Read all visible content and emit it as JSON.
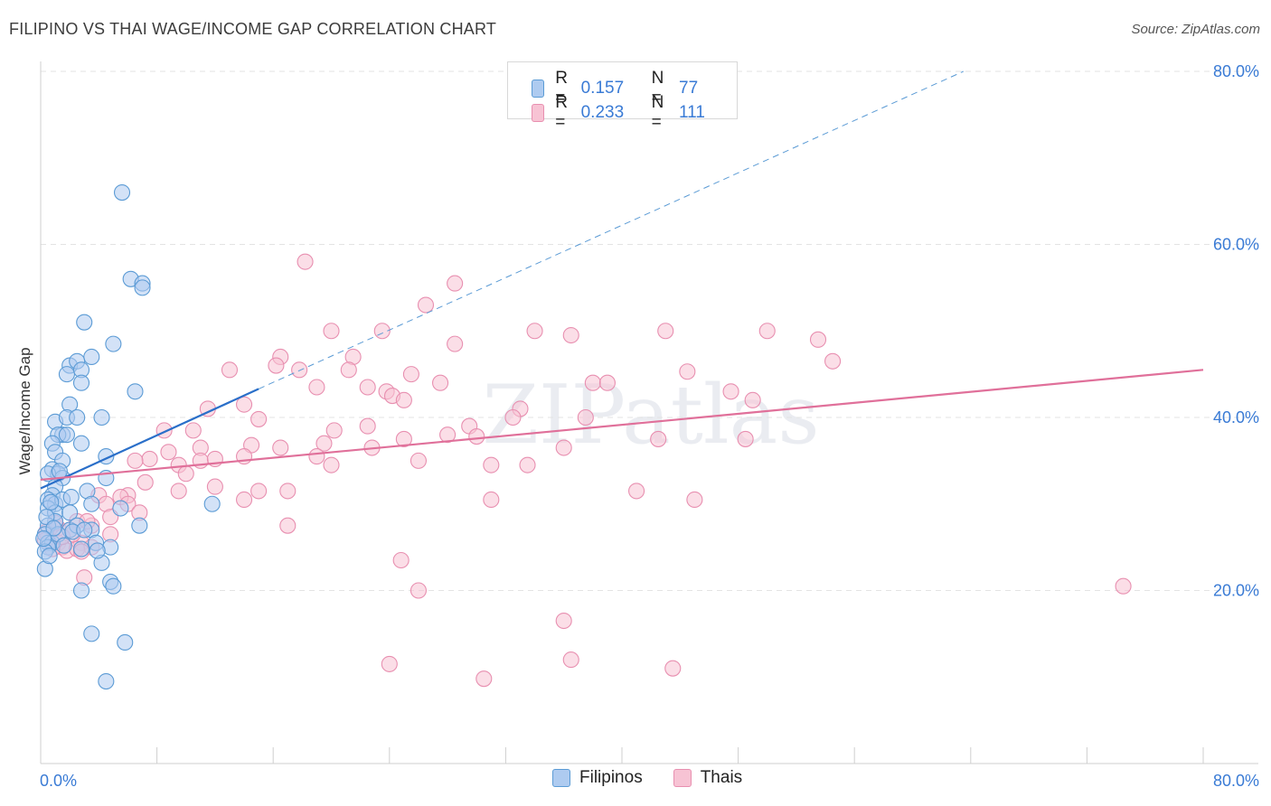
{
  "title": "FILIPINO VS THAI WAGE/INCOME GAP CORRELATION CHART",
  "source": "Source: ZipAtlas.com",
  "watermark": "ZIPatlas",
  "colors": {
    "blue": "#5b9bd5",
    "blue_fill": "#aecbf0",
    "blue_line": "#2a6fc9",
    "pink": "#e88fb0",
    "pink_fill": "#f7c3d4",
    "pink_line": "#e0709a",
    "axis_text": "#3a7bd5"
  },
  "legend": {
    "rows": [
      {
        "r_label": "R =",
        "r_value": "0.157",
        "n_label": "N =",
        "n_value": "77"
      },
      {
        "r_label": "R =",
        "r_value": "0.233",
        "n_label": "N =",
        "n_value": "111"
      }
    ]
  },
  "bottom_legend": [
    "Filipinos",
    "Thais"
  ],
  "chart_data": {
    "type": "scatter",
    "title": "FILIPINO VS THAI WAGE/INCOME GAP CORRELATION CHART",
    "xlabel": "",
    "ylabel": "Wage/Income Gap",
    "xlim": [
      0,
      80
    ],
    "ylim": [
      0,
      80
    ],
    "x_tick_labels": [
      "0.0%",
      "80.0%"
    ],
    "y_tick_labels": [
      "20.0%",
      "40.0%",
      "60.0%",
      "80.0%"
    ],
    "y_ticks": [
      20,
      40,
      60,
      80
    ],
    "grid": true,
    "legend_placement": "top-center",
    "series": [
      {
        "name": "Filipinos",
        "r": 0.157,
        "n": 77,
        "trend": {
          "x0": 0,
          "y0": 31.8,
          "x1": 15,
          "y1": 43.3,
          "dashed_to": [
            63.5,
            80
          ]
        },
        "points": [
          [
            5.6,
            66
          ],
          [
            6.2,
            56
          ],
          [
            7.0,
            55.5
          ],
          [
            7.0,
            55
          ],
          [
            3.0,
            51
          ],
          [
            5.0,
            48.5
          ],
          [
            3.5,
            47
          ],
          [
            2.0,
            46
          ],
          [
            2.5,
            46.5
          ],
          [
            1.8,
            45
          ],
          [
            2.8,
            45.5
          ],
          [
            6.5,
            43
          ],
          [
            2.0,
            41.5
          ],
          [
            2.8,
            44
          ],
          [
            1.0,
            39.5
          ],
          [
            1.8,
            40
          ],
          [
            2.5,
            40
          ],
          [
            1.5,
            38
          ],
          [
            1.2,
            38
          ],
          [
            0.8,
            37
          ],
          [
            1.8,
            38
          ],
          [
            2.8,
            37
          ],
          [
            1.0,
            36
          ],
          [
            4.2,
            40
          ],
          [
            1.5,
            35
          ],
          [
            0.8,
            34
          ],
          [
            4.5,
            35.5
          ],
          [
            1.2,
            33.5
          ],
          [
            1.5,
            33
          ],
          [
            1.0,
            32
          ],
          [
            4.5,
            33
          ],
          [
            0.5,
            33.5
          ],
          [
            0.8,
            31
          ],
          [
            0.5,
            30.5
          ],
          [
            1.0,
            30
          ],
          [
            1.5,
            30.5
          ],
          [
            3.2,
            31.5
          ],
          [
            3.5,
            30
          ],
          [
            5.5,
            29.5
          ],
          [
            0.5,
            29.5
          ],
          [
            1.0,
            29
          ],
          [
            2.0,
            29
          ],
          [
            1.0,
            28
          ],
          [
            0.5,
            27.5
          ],
          [
            2.0,
            27
          ],
          [
            3.5,
            27
          ],
          [
            2.5,
            27.5
          ],
          [
            6.8,
            27.5
          ],
          [
            0.3,
            26.5
          ],
          [
            0.5,
            25.5
          ],
          [
            0.8,
            25.5
          ],
          [
            0.5,
            25
          ],
          [
            2.8,
            24.8
          ],
          [
            3.8,
            25.5
          ],
          [
            4.8,
            25
          ],
          [
            0.3,
            24.5
          ],
          [
            4.2,
            23.2
          ],
          [
            0.3,
            22.5
          ],
          [
            4.8,
            21
          ],
          [
            5.0,
            20.5
          ],
          [
            2.8,
            20
          ],
          [
            11.8,
            30
          ],
          [
            3.5,
            15
          ],
          [
            5.8,
            14
          ],
          [
            4.5,
            9.5
          ],
          [
            0.6,
            24
          ],
          [
            1.2,
            26.5
          ],
          [
            2.2,
            26.8
          ],
          [
            3.0,
            27
          ],
          [
            0.4,
            28.5
          ],
          [
            0.9,
            27.2
          ],
          [
            1.6,
            25.2
          ],
          [
            0.7,
            30.2
          ],
          [
            2.1,
            30.8
          ],
          [
            3.9,
            24.6
          ],
          [
            0.2,
            26
          ],
          [
            1.3,
            33.8
          ]
        ]
      },
      {
        "name": "Thais",
        "r": 0.233,
        "n": 111,
        "trend": {
          "x0": 0,
          "y0": 32.8,
          "x1": 80,
          "y1": 45.5
        },
        "points": [
          [
            18.2,
            58
          ],
          [
            28.5,
            55.5
          ],
          [
            26.5,
            53
          ],
          [
            20,
            50
          ],
          [
            23.5,
            50
          ],
          [
            34,
            50
          ],
          [
            36.5,
            49.5
          ],
          [
            43,
            50
          ],
          [
            50,
            50
          ],
          [
            53.5,
            49
          ],
          [
            28.5,
            48.5
          ],
          [
            16.5,
            47
          ],
          [
            21.5,
            47
          ],
          [
            54.5,
            46.5
          ],
          [
            16.2,
            46
          ],
          [
            13,
            45.5
          ],
          [
            17.8,
            45.5
          ],
          [
            21.2,
            45.5
          ],
          [
            25.5,
            45
          ],
          [
            38,
            44
          ],
          [
            27.5,
            44
          ],
          [
            39,
            44
          ],
          [
            44.5,
            45.3
          ],
          [
            22.5,
            43.5
          ],
          [
            19,
            43.5
          ],
          [
            23.8,
            43
          ],
          [
            24.2,
            42.5
          ],
          [
            47.5,
            43
          ],
          [
            49,
            42
          ],
          [
            25,
            42
          ],
          [
            11.5,
            41
          ],
          [
            14,
            41.5
          ],
          [
            33,
            41
          ],
          [
            32.5,
            40
          ],
          [
            37.5,
            40
          ],
          [
            15,
            39.8
          ],
          [
            10.5,
            38.5
          ],
          [
            20.2,
            38.5
          ],
          [
            8.5,
            38.5
          ],
          [
            22.5,
            39
          ],
          [
            42.5,
            37.5
          ],
          [
            48.5,
            37.5
          ],
          [
            29.5,
            39
          ],
          [
            8.8,
            36
          ],
          [
            11,
            36.5
          ],
          [
            14.5,
            36.8
          ],
          [
            16.5,
            36.5
          ],
          [
            19.5,
            37
          ],
          [
            22.8,
            36.5
          ],
          [
            25,
            37.5
          ],
          [
            28,
            38
          ],
          [
            30,
            37.8
          ],
          [
            36,
            36.5
          ],
          [
            7.5,
            35.2
          ],
          [
            9.5,
            34.5
          ],
          [
            11,
            35
          ],
          [
            12,
            35.2
          ],
          [
            14,
            35.5
          ],
          [
            19,
            35.5
          ],
          [
            20,
            34.5
          ],
          [
            26,
            35
          ],
          [
            31,
            34.5
          ],
          [
            33.5,
            34.5
          ],
          [
            6.5,
            35
          ],
          [
            10,
            33.5
          ],
          [
            7.2,
            32.5
          ],
          [
            12,
            32
          ],
          [
            15,
            31.5
          ],
          [
            17,
            31.5
          ],
          [
            9.5,
            31.5
          ],
          [
            6,
            31
          ],
          [
            5.5,
            30.8
          ],
          [
            4,
            31
          ],
          [
            4.5,
            30
          ],
          [
            6,
            30
          ],
          [
            6.8,
            29
          ],
          [
            14,
            30.5
          ],
          [
            31,
            30.5
          ],
          [
            41,
            31.5
          ],
          [
            45,
            30.5
          ],
          [
            4.8,
            28.5
          ],
          [
            2.5,
            28
          ],
          [
            3.5,
            27.5
          ],
          [
            1.2,
            27.2
          ],
          [
            3.2,
            28
          ],
          [
            17,
            27.5
          ],
          [
            4.8,
            26.5
          ],
          [
            0.5,
            26
          ],
          [
            1.2,
            25.5
          ],
          [
            1.5,
            25
          ],
          [
            2.8,
            25.5
          ],
          [
            3.5,
            25
          ],
          [
            0.8,
            24.8
          ],
          [
            1.8,
            24.6
          ],
          [
            2.5,
            24.8
          ],
          [
            2.8,
            24.5
          ],
          [
            0.4,
            26.8
          ],
          [
            1.0,
            27.8
          ],
          [
            2.2,
            26.5
          ],
          [
            3.0,
            21.5
          ],
          [
            24.8,
            23.5
          ],
          [
            26,
            20
          ],
          [
            74.5,
            20.5
          ],
          [
            36,
            16.5
          ],
          [
            24,
            11.5
          ],
          [
            36.5,
            12
          ],
          [
            43.5,
            11
          ],
          [
            30.5,
            9.8
          ],
          [
            2.0,
            27
          ],
          [
            0.3,
            25.8
          ],
          [
            1.5,
            26.2
          ]
        ]
      }
    ]
  }
}
